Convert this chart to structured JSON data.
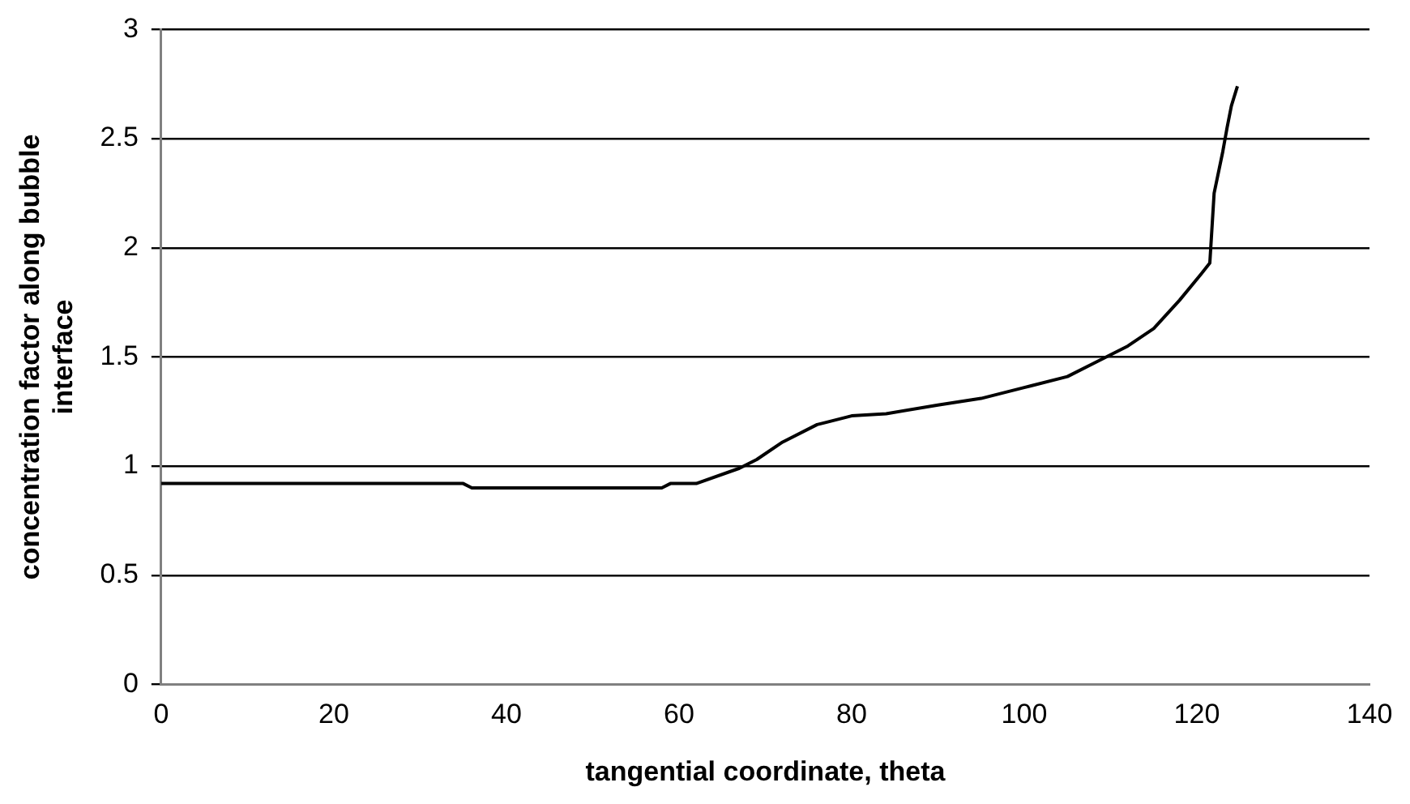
{
  "chart_data": {
    "type": "line",
    "xlabel": "tangential coordinate, theta",
    "ylabel": "concentration factor along bubble interface",
    "x": [
      0,
      35,
      36,
      58,
      59,
      62,
      67,
      69,
      72,
      76,
      80,
      84,
      90,
      95,
      100,
      105,
      108,
      112,
      115,
      118,
      120.5,
      121.5,
      122,
      123,
      123.5,
      124,
      124.7
    ],
    "series": [
      {
        "color": "#000000",
        "values": [
          0.92,
          0.92,
          0.9,
          0.9,
          0.92,
          0.92,
          0.99,
          1.03,
          1.11,
          1.19,
          1.23,
          1.24,
          1.28,
          1.31,
          1.36,
          1.41,
          1.47,
          1.55,
          1.63,
          1.76,
          1.88,
          1.93,
          2.25,
          2.44,
          2.55,
          2.65,
          2.74
        ]
      }
    ],
    "xlim": [
      0,
      140
    ],
    "xticks": [
      0,
      20,
      40,
      60,
      80,
      100,
      120,
      140
    ],
    "ylim": [
      0,
      3
    ],
    "yticks": [
      0,
      0.5,
      1,
      1.5,
      2,
      2.5,
      3
    ],
    "grid": "y",
    "legend": false,
    "marker": "none",
    "line_style": "solid"
  }
}
